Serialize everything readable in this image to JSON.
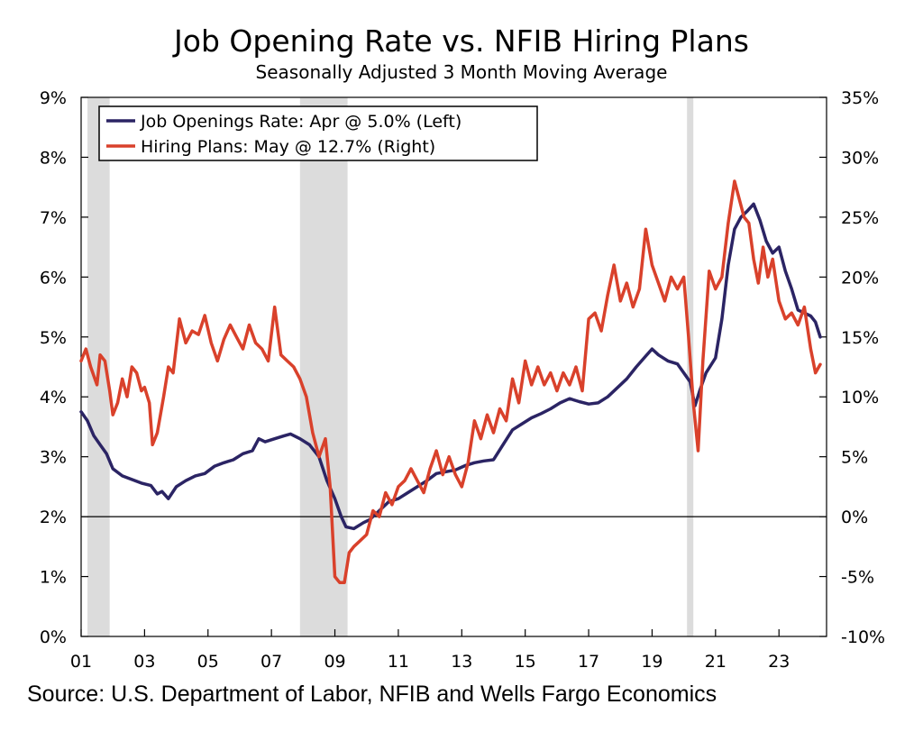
{
  "chart_data": {
    "type": "line",
    "title": "Job Opening Rate vs. NFIB Hiring Plans",
    "subtitle": "Seasonally Adjusted 3 Month Moving Average",
    "source": "Source: U.S. Department of Labor, NFIB and Wells Fargo Economics",
    "x_ticks": [
      "01",
      "03",
      "05",
      "07",
      "09",
      "11",
      "13",
      "15",
      "17",
      "19",
      "21",
      "23"
    ],
    "x_tick_values": [
      2001,
      2003,
      2005,
      2007,
      2009,
      2011,
      2013,
      2015,
      2017,
      2019,
      2021,
      2023
    ],
    "xlim": [
      2001,
      2024.5
    ],
    "y_left": {
      "ticks": [
        "0%",
        "1%",
        "2%",
        "3%",
        "4%",
        "5%",
        "6%",
        "7%",
        "8%",
        "9%"
      ],
      "ylim": [
        0,
        9
      ]
    },
    "y_right": {
      "ticks": [
        "-10%",
        "-5%",
        "0%",
        "5%",
        "10%",
        "15%",
        "20%",
        "25%",
        "30%",
        "35%"
      ],
      "ylim": [
        -10,
        35
      ]
    },
    "grid": false,
    "legend_position": "top-left",
    "recessions": [
      [
        2001.2,
        2001.9
      ],
      [
        2007.9,
        2009.4
      ],
      [
        2020.1,
        2020.3
      ]
    ],
    "series": [
      {
        "name": "Job Openings Rate: Apr @ 5.0% (Left)",
        "axis": "left",
        "color": "#2b2464",
        "points": [
          [
            2001.0,
            3.75
          ],
          [
            2001.2,
            3.6
          ],
          [
            2001.4,
            3.35
          ],
          [
            2001.6,
            3.2
          ],
          [
            2001.8,
            3.05
          ],
          [
            2002.0,
            2.8
          ],
          [
            2002.3,
            2.68
          ],
          [
            2002.6,
            2.62
          ],
          [
            2002.9,
            2.56
          ],
          [
            2003.2,
            2.52
          ],
          [
            2003.4,
            2.38
          ],
          [
            2003.55,
            2.42
          ],
          [
            2003.75,
            2.3
          ],
          [
            2004.0,
            2.5
          ],
          [
            2004.3,
            2.6
          ],
          [
            2004.6,
            2.68
          ],
          [
            2004.9,
            2.72
          ],
          [
            2005.2,
            2.84
          ],
          [
            2005.5,
            2.9
          ],
          [
            2005.8,
            2.95
          ],
          [
            2006.1,
            3.05
          ],
          [
            2006.4,
            3.1
          ],
          [
            2006.6,
            3.3
          ],
          [
            2006.8,
            3.25
          ],
          [
            2007.1,
            3.3
          ],
          [
            2007.4,
            3.35
          ],
          [
            2007.6,
            3.38
          ],
          [
            2007.9,
            3.3
          ],
          [
            2008.2,
            3.2
          ],
          [
            2008.5,
            3.0
          ],
          [
            2008.75,
            2.6
          ],
          [
            2009.0,
            2.3
          ],
          [
            2009.2,
            2.0
          ],
          [
            2009.35,
            1.83
          ],
          [
            2009.6,
            1.8
          ],
          [
            2009.9,
            1.9
          ],
          [
            2010.1,
            1.95
          ],
          [
            2010.4,
            2.1
          ],
          [
            2010.7,
            2.25
          ],
          [
            2011.0,
            2.3
          ],
          [
            2011.3,
            2.4
          ],
          [
            2011.6,
            2.5
          ],
          [
            2011.9,
            2.6
          ],
          [
            2012.2,
            2.72
          ],
          [
            2012.5,
            2.75
          ],
          [
            2012.8,
            2.78
          ],
          [
            2013.1,
            2.85
          ],
          [
            2013.4,
            2.9
          ],
          [
            2013.7,
            2.93
          ],
          [
            2014.0,
            2.95
          ],
          [
            2014.3,
            3.2
          ],
          [
            2014.6,
            3.45
          ],
          [
            2014.9,
            3.55
          ],
          [
            2015.2,
            3.65
          ],
          [
            2015.5,
            3.72
          ],
          [
            2015.8,
            3.8
          ],
          [
            2016.1,
            3.9
          ],
          [
            2016.4,
            3.97
          ],
          [
            2016.7,
            3.92
          ],
          [
            2017.0,
            3.88
          ],
          [
            2017.3,
            3.9
          ],
          [
            2017.6,
            4.0
          ],
          [
            2017.9,
            4.15
          ],
          [
            2018.2,
            4.3
          ],
          [
            2018.5,
            4.5
          ],
          [
            2018.8,
            4.68
          ],
          [
            2019.0,
            4.8
          ],
          [
            2019.2,
            4.7
          ],
          [
            2019.5,
            4.6
          ],
          [
            2019.8,
            4.55
          ],
          [
            2020.0,
            4.4
          ],
          [
            2020.2,
            4.25
          ],
          [
            2020.35,
            3.85
          ],
          [
            2020.5,
            4.1
          ],
          [
            2020.7,
            4.4
          ],
          [
            2021.0,
            4.65
          ],
          [
            2021.2,
            5.3
          ],
          [
            2021.4,
            6.2
          ],
          [
            2021.6,
            6.8
          ],
          [
            2021.8,
            7.0
          ],
          [
            2022.0,
            7.1
          ],
          [
            2022.2,
            7.22
          ],
          [
            2022.4,
            6.95
          ],
          [
            2022.6,
            6.6
          ],
          [
            2022.8,
            6.4
          ],
          [
            2023.0,
            6.5
          ],
          [
            2023.2,
            6.1
          ],
          [
            2023.4,
            5.8
          ],
          [
            2023.6,
            5.45
          ],
          [
            2023.8,
            5.4
          ],
          [
            2024.0,
            5.35
          ],
          [
            2024.15,
            5.25
          ],
          [
            2024.3,
            5.0
          ]
        ]
      },
      {
        "name": "Hiring Plans: May @ 12.7% (Right)",
        "axis": "right",
        "color": "#d9412b",
        "points": [
          [
            2001.0,
            13.0
          ],
          [
            2001.15,
            14.0
          ],
          [
            2001.3,
            12.5
          ],
          [
            2001.5,
            11.0
          ],
          [
            2001.6,
            13.5
          ],
          [
            2001.75,
            13.0
          ],
          [
            2001.9,
            10.5
          ],
          [
            2002.0,
            8.5
          ],
          [
            2002.15,
            9.5
          ],
          [
            2002.3,
            11.5
          ],
          [
            2002.45,
            10.0
          ],
          [
            2002.6,
            12.5
          ],
          [
            2002.75,
            12.0
          ],
          [
            2002.9,
            10.5
          ],
          [
            2003.0,
            10.8
          ],
          [
            2003.15,
            9.5
          ],
          [
            2003.25,
            6.0
          ],
          [
            2003.4,
            7.0
          ],
          [
            2003.6,
            10.0
          ],
          [
            2003.75,
            12.5
          ],
          [
            2003.9,
            12.0
          ],
          [
            2004.1,
            16.5
          ],
          [
            2004.3,
            14.5
          ],
          [
            2004.5,
            15.5
          ],
          [
            2004.7,
            15.2
          ],
          [
            2004.9,
            16.8
          ],
          [
            2005.1,
            14.5
          ],
          [
            2005.3,
            13.0
          ],
          [
            2005.5,
            14.8
          ],
          [
            2005.7,
            16.0
          ],
          [
            2005.9,
            15.0
          ],
          [
            2006.1,
            14.0
          ],
          [
            2006.3,
            16.0
          ],
          [
            2006.5,
            14.5
          ],
          [
            2006.7,
            14.0
          ],
          [
            2006.9,
            13.0
          ],
          [
            2007.1,
            17.5
          ],
          [
            2007.3,
            13.5
          ],
          [
            2007.5,
            13.0
          ],
          [
            2007.7,
            12.5
          ],
          [
            2007.9,
            11.5
          ],
          [
            2008.1,
            10.0
          ],
          [
            2008.3,
            7.0
          ],
          [
            2008.5,
            5.0
          ],
          [
            2008.7,
            6.5
          ],
          [
            2008.85,
            2.5
          ],
          [
            2009.0,
            -5.0
          ],
          [
            2009.15,
            -5.5
          ],
          [
            2009.3,
            -5.5
          ],
          [
            2009.45,
            -3.0
          ],
          [
            2009.6,
            -2.5
          ],
          [
            2009.8,
            -2.0
          ],
          [
            2010.0,
            -1.5
          ],
          [
            2010.2,
            0.5
          ],
          [
            2010.4,
            0.0
          ],
          [
            2010.6,
            2.0
          ],
          [
            2010.8,
            1.0
          ],
          [
            2011.0,
            2.5
          ],
          [
            2011.2,
            3.0
          ],
          [
            2011.4,
            4.0
          ],
          [
            2011.6,
            3.0
          ],
          [
            2011.8,
            2.0
          ],
          [
            2012.0,
            4.0
          ],
          [
            2012.2,
            5.5
          ],
          [
            2012.4,
            3.5
          ],
          [
            2012.6,
            5.0
          ],
          [
            2012.8,
            3.5
          ],
          [
            2013.0,
            2.5
          ],
          [
            2013.2,
            4.5
          ],
          [
            2013.4,
            8.0
          ],
          [
            2013.6,
            6.5
          ],
          [
            2013.8,
            8.5
          ],
          [
            2014.0,
            7.0
          ],
          [
            2014.2,
            9.0
          ],
          [
            2014.4,
            8.0
          ],
          [
            2014.6,
            11.5
          ],
          [
            2014.8,
            9.5
          ],
          [
            2015.0,
            13.0
          ],
          [
            2015.2,
            11.0
          ],
          [
            2015.4,
            12.5
          ],
          [
            2015.6,
            11.0
          ],
          [
            2015.8,
            12.0
          ],
          [
            2016.0,
            10.5
          ],
          [
            2016.2,
            12.0
          ],
          [
            2016.4,
            11.0
          ],
          [
            2016.6,
            12.5
          ],
          [
            2016.8,
            10.5
          ],
          [
            2017.0,
            16.5
          ],
          [
            2017.2,
            17.0
          ],
          [
            2017.4,
            15.5
          ],
          [
            2017.6,
            18.5
          ],
          [
            2017.8,
            21.0
          ],
          [
            2018.0,
            18.0
          ],
          [
            2018.2,
            19.5
          ],
          [
            2018.4,
            17.5
          ],
          [
            2018.6,
            19.0
          ],
          [
            2018.8,
            24.0
          ],
          [
            2019.0,
            21.0
          ],
          [
            2019.2,
            19.5
          ],
          [
            2019.4,
            18.0
          ],
          [
            2019.6,
            20.0
          ],
          [
            2019.8,
            19.0
          ],
          [
            2020.0,
            20.0
          ],
          [
            2020.15,
            15.0
          ],
          [
            2020.3,
            9.5
          ],
          [
            2020.45,
            5.5
          ],
          [
            2020.6,
            13.0
          ],
          [
            2020.8,
            20.5
          ],
          [
            2021.0,
            19.0
          ],
          [
            2021.2,
            20.0
          ],
          [
            2021.4,
            24.5
          ],
          [
            2021.6,
            28.0
          ],
          [
            2021.75,
            26.5
          ],
          [
            2021.9,
            25.0
          ],
          [
            2022.05,
            24.5
          ],
          [
            2022.2,
            21.5
          ],
          [
            2022.35,
            19.5
          ],
          [
            2022.5,
            22.5
          ],
          [
            2022.65,
            20.0
          ],
          [
            2022.8,
            21.5
          ],
          [
            2023.0,
            18.0
          ],
          [
            2023.2,
            16.5
          ],
          [
            2023.4,
            17.0
          ],
          [
            2023.6,
            16.0
          ],
          [
            2023.8,
            17.5
          ],
          [
            2024.0,
            14.0
          ],
          [
            2024.15,
            12.0
          ],
          [
            2024.3,
            12.7
          ]
        ]
      }
    ]
  }
}
